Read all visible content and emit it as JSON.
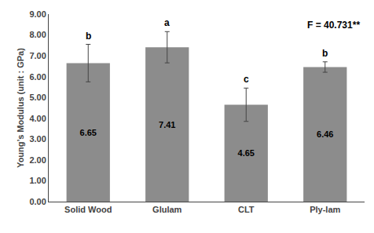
{
  "chart_data": {
    "type": "bar",
    "ylabel": "Young’s Modulus (unit : GPa)",
    "categories": [
      "Solid Wood",
      "Glulam",
      "CLT",
      "Ply-lam"
    ],
    "values": [
      6.65,
      7.41,
      4.65,
      6.46
    ],
    "errors": [
      0.9,
      0.75,
      0.8,
      0.25
    ],
    "bar_annotations": [
      "b",
      "a",
      "c",
      "b"
    ],
    "annotation": "F = 40.731**",
    "color": "#8c8c8c",
    "data_labels": true,
    "ylim": [
      0.0,
      9.0
    ],
    "yticks": [
      {
        "value": 0.0,
        "label": "0.00"
      },
      {
        "value": 1.0,
        "label": "1.00"
      },
      {
        "value": 2.0,
        "label": "2.00"
      },
      {
        "value": 3.0,
        "label": "3.00"
      },
      {
        "value": 4.0,
        "label": "4.00"
      },
      {
        "value": 5.0,
        "label": "5.00"
      },
      {
        "value": 6.0,
        "label": "6.00"
      },
      {
        "value": 7.0,
        "label": "7.00"
      },
      {
        "value": 8.0,
        "label": "8.00"
      },
      {
        "value": 9.0,
        "label": "9.00"
      }
    ],
    "grid": false
  }
}
